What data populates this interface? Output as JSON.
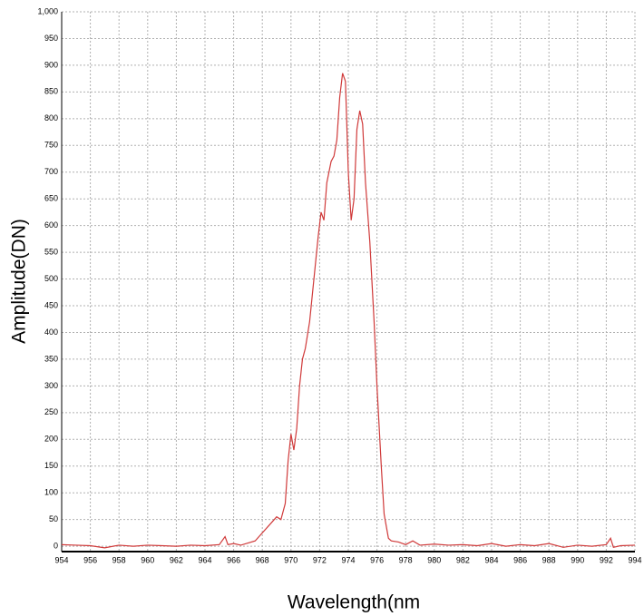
{
  "chart_data": {
    "type": "line",
    "x_label": "Wavelength(nm",
    "y_label": "Amplitude(DN)",
    "xlim": [
      954,
      994
    ],
    "ylim": [
      -10,
      1000
    ],
    "xticks": [
      954,
      956,
      958,
      960,
      962,
      964,
      966,
      968,
      970,
      972,
      974,
      976,
      978,
      980,
      982,
      984,
      986,
      988,
      990,
      992,
      994
    ],
    "yticks": [
      0,
      50,
      100,
      150,
      200,
      250,
      300,
      350,
      400,
      450,
      500,
      550,
      600,
      650,
      700,
      750,
      800,
      850,
      900,
      950,
      {
        "value": 1000,
        "label": "1,000"
      }
    ],
    "grid": true,
    "x": [
      954,
      955,
      956,
      957,
      958,
      959,
      960,
      961,
      962,
      963,
      964,
      965,
      965.4,
      965.6,
      966,
      966.5,
      967,
      967.5,
      968,
      968.5,
      969,
      969.3,
      969.6,
      969.8,
      970,
      970.2,
      970.4,
      970.6,
      970.8,
      971,
      971.3,
      971.6,
      971.9,
      972.1,
      972.3,
      972.5,
      972.8,
      973,
      973.2,
      973.4,
      973.6,
      973.8,
      974,
      974.2,
      974.4,
      974.6,
      974.8,
      975,
      975.2,
      975.5,
      975.8,
      976,
      976.3,
      976.5,
      976.8,
      977,
      977.5,
      978,
      978.5,
      979,
      980,
      981,
      982,
      983,
      984,
      985,
      986,
      987,
      988,
      989,
      990,
      991,
      992,
      992.3,
      992.5,
      993,
      994
    ],
    "series": [
      {
        "color": "#d03a3a",
        "values": [
          3,
          2,
          1,
          -3,
          2,
          0,
          2,
          1,
          0,
          2,
          1,
          3,
          18,
          3,
          5,
          2,
          6,
          10,
          25,
          40,
          55,
          50,
          80,
          160,
          210,
          180,
          220,
          300,
          350,
          370,
          420,
          500,
          580,
          625,
          610,
          680,
          720,
          730,
          760,
          840,
          885,
          870,
          700,
          610,
          650,
          780,
          815,
          790,
          680,
          570,
          420,
          300,
          150,
          60,
          15,
          10,
          8,
          3,
          10,
          2,
          4,
          2,
          3,
          1,
          5,
          0,
          3,
          1,
          5,
          -2,
          2,
          0,
          3,
          15,
          -2,
          1,
          2
        ]
      }
    ]
  }
}
